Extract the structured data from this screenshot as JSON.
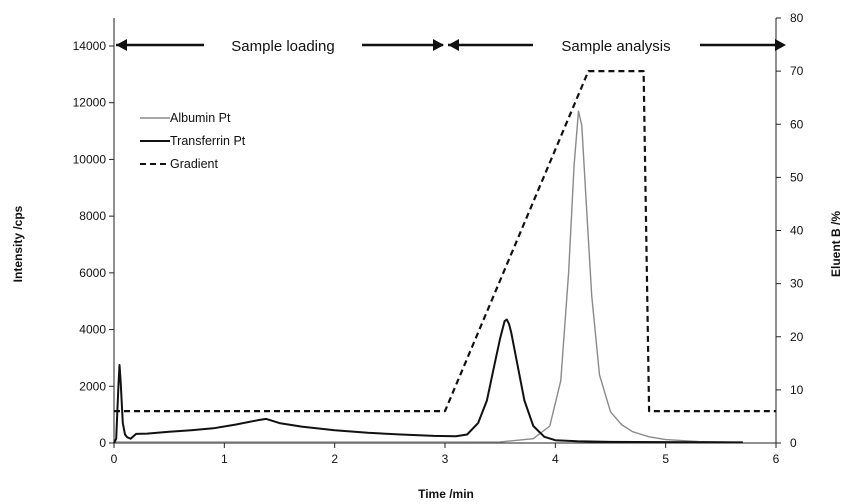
{
  "chart_data": {
    "type": "line",
    "xlabel": "Time /min",
    "ylabel": "Intensity /cps",
    "y2label": "Eluent B /%",
    "xlim": [
      0,
      6
    ],
    "ylim": [
      0,
      14000
    ],
    "y2lim": [
      0,
      80
    ],
    "xticks": [
      0,
      1,
      2,
      3,
      4,
      5,
      6
    ],
    "yticks": [
      0,
      2000,
      4000,
      6000,
      8000,
      10000,
      12000,
      14000
    ],
    "y2ticks": [
      0,
      10,
      20,
      30,
      40,
      50,
      60,
      70,
      80
    ],
    "legend_position": "upper-left",
    "grid": false,
    "annotations": [
      {
        "text": "Sample loading",
        "x_start": 0,
        "x_end": 3
      },
      {
        "text": "Sample analysis",
        "x_start": 3,
        "x_end": 6
      }
    ],
    "series": [
      {
        "name": "Albumin Pt",
        "axis": "left",
        "color": "#8a8a8a",
        "style": "solid",
        "x": [
          0,
          0.5,
          1,
          1.5,
          2,
          2.5,
          3,
          3.5,
          3.8,
          3.95,
          4.05,
          4.12,
          4.17,
          4.21,
          4.24,
          4.28,
          4.33,
          4.4,
          4.5,
          4.6,
          4.7,
          4.85,
          5.0,
          5.3,
          5.7
        ],
        "y": [
          30,
          30,
          30,
          30,
          30,
          30,
          30,
          40,
          150,
          600,
          2200,
          6000,
          9800,
          11700,
          11200,
          8500,
          5200,
          2400,
          1100,
          650,
          400,
          220,
          120,
          50,
          20
        ]
      },
      {
        "name": "Transferrin Pt",
        "axis": "left",
        "color": "#111111",
        "style": "solid",
        "x": [
          0,
          0.02,
          0.04,
          0.05,
          0.06,
          0.08,
          0.1,
          0.12,
          0.15,
          0.2,
          0.3,
          0.5,
          0.7,
          0.9,
          1.1,
          1.3,
          1.38,
          1.5,
          1.7,
          2.0,
          2.3,
          2.6,
          2.9,
          3.1,
          3.2,
          3.3,
          3.38,
          3.45,
          3.5,
          3.54,
          3.56,
          3.58,
          3.6,
          3.65,
          3.72,
          3.8,
          3.9,
          4.0,
          4.2,
          4.5,
          5.0,
          5.7
        ],
        "y": [
          0,
          150,
          2000,
          2750,
          2200,
          700,
          300,
          200,
          150,
          320,
          330,
          400,
          450,
          520,
          650,
          800,
          850,
          700,
          580,
          450,
          360,
          300,
          250,
          240,
          300,
          700,
          1500,
          2800,
          3700,
          4300,
          4350,
          4200,
          3900,
          2900,
          1500,
          600,
          220,
          100,
          60,
          40,
          30,
          20
        ]
      },
      {
        "name": "Gradient",
        "axis": "right",
        "color": "#111111",
        "style": "dashed",
        "x": [
          0,
          3.0,
          4.3,
          4.8,
          4.85,
          6.0
        ],
        "y": [
          6,
          6,
          70,
          70,
          6,
          6
        ]
      }
    ]
  }
}
